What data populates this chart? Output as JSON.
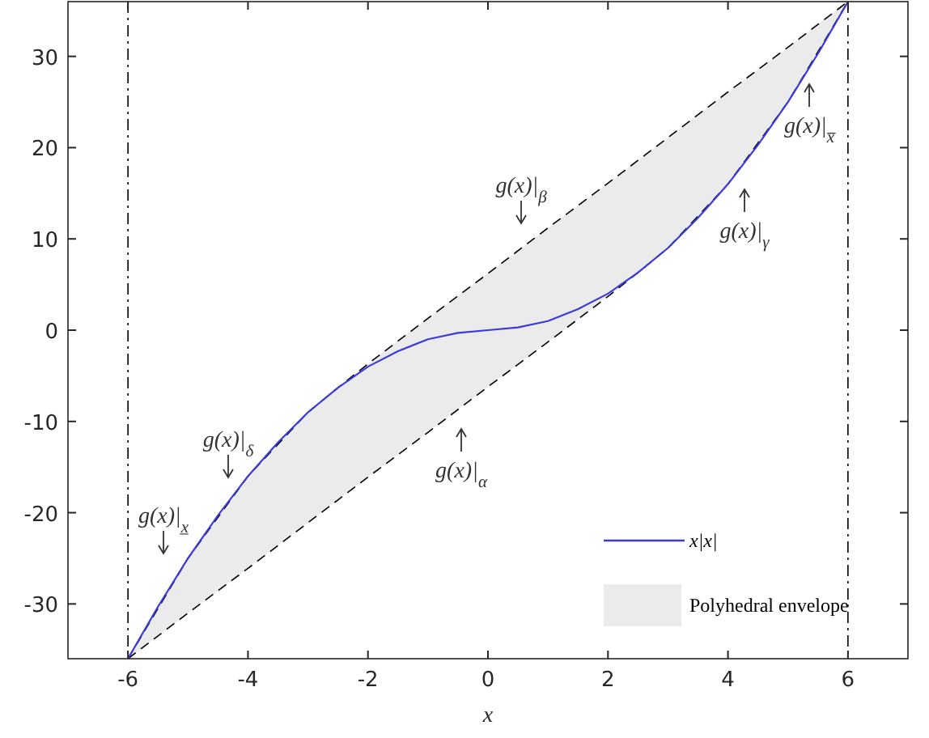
{
  "chart_data": {
    "type": "line",
    "xlabel": "x",
    "xlim": [
      -7,
      7
    ],
    "ylim": [
      -36,
      36
    ],
    "xticks": [
      -6,
      -4,
      -2,
      0,
      2,
      4,
      6
    ],
    "yticks": [
      -30,
      -20,
      -10,
      0,
      10,
      20,
      30
    ],
    "legend": "bottom right",
    "grid": false,
    "series": [
      {
        "name": "Polyhedral envelope",
        "type": "line",
        "color": "#000000",
        "line_style": "dashed",
        "x": [
          -6,
          -5,
          -4,
          -3,
          -2.5,
          -2,
          -1,
          0,
          1,
          2,
          2.5,
          3,
          4,
          5,
          6
        ],
        "values": [
          -36,
          -25,
          -16,
          -9,
          -6.3,
          -3.7,
          1.3,
          6.2,
          11.2,
          16.1,
          18.6,
          21.1,
          26.1,
          31,
          36
        ],
        "lower": [
          -36,
          -31,
          -26.1,
          -21.1,
          -18.6,
          -16.1,
          -11.2,
          -6.2,
          -1.3,
          3.7,
          6.3,
          9,
          16,
          25,
          36
        ],
        "upper": [
          -36,
          -25,
          -16,
          -9,
          -6.3,
          -3.7,
          1.3,
          6.2,
          11.2,
          16.1,
          18.6,
          21.1,
          26.1,
          31,
          36
        ]
      },
      {
        "name": "x|x|",
        "color": "#3b3bdb",
        "line_style": "solid",
        "x": [
          -6,
          -5.5,
          -5,
          -4.5,
          -4,
          -3.5,
          -3,
          -2.5,
          -2,
          -1.5,
          -1,
          -0.5,
          0,
          0.5,
          1,
          1.5,
          2,
          2.5,
          3,
          3.5,
          4,
          4.5,
          5,
          5.5,
          6
        ],
        "values": [
          -36,
          -30.3,
          -25,
          -20.3,
          -16,
          -12.3,
          -9,
          -6.3,
          -4,
          -2.3,
          -1,
          -0.3,
          0,
          0.3,
          1,
          2.3,
          4,
          6.3,
          9,
          12.3,
          16,
          20.3,
          25,
          30.3,
          36
        ]
      }
    ],
    "ref_lines": [
      {
        "axis": "x",
        "value": -6,
        "line_style": "dashdot",
        "color": "#000000"
      },
      {
        "axis": "x",
        "value": 6,
        "line_style": "dashdot",
        "color": "#000000"
      }
    ],
    "annotations": [
      "g(x)|$_{α}$",
      "g(x)|$_{δ}$",
      "g(x)|$_{x̲}$",
      "g(x)|$_{β}$",
      "g(x)|$_{γ}$",
      "g(x)|$_{x̅}$"
    ]
  }
}
